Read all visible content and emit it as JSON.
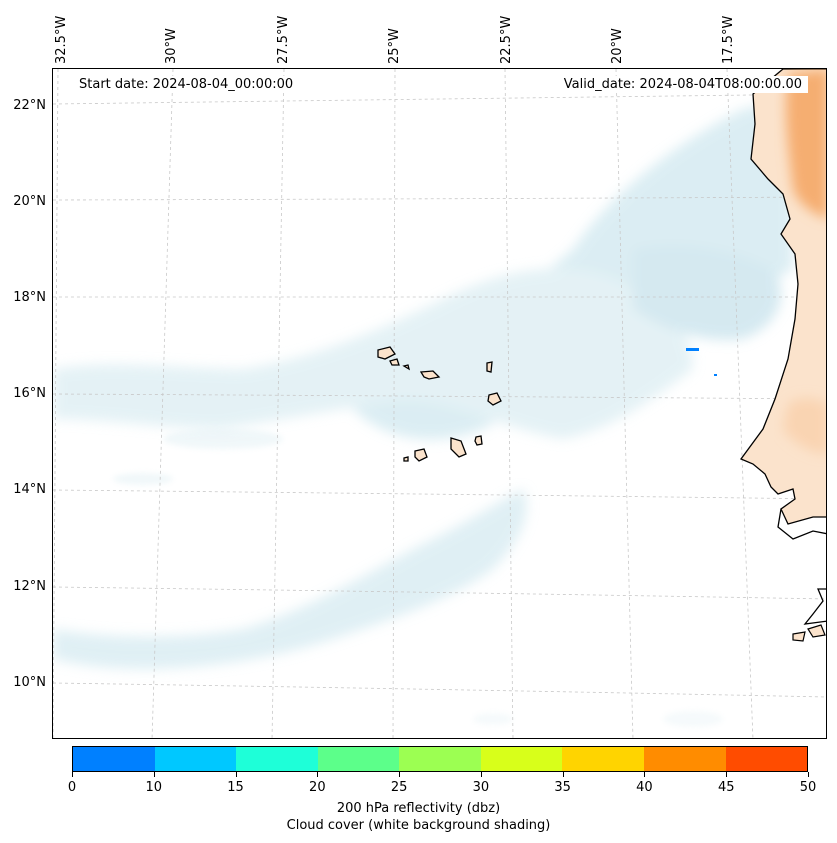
{
  "map": {
    "start_date": "Start date: 2024-08-04_00:00:00",
    "valid_date": "Valid_date: 2024-08-04T08:00:00.00",
    "lon_labels": [
      "32.5°W",
      "30°W",
      "27.5°W",
      "25°W",
      "22.5°W",
      "20°W",
      "17.5°W"
    ],
    "lat_labels": [
      "22°N",
      "20°N",
      "18°N",
      "16°N",
      "14°N",
      "12°N",
      "10°N"
    ],
    "land_fill": "#fbe3cc",
    "coast_color": "#000000",
    "cloud_color": "#add8e6",
    "reflectivity_color": "#f4a460"
  },
  "colorbar": {
    "colors": [
      "#0080ff",
      "#00c8ff",
      "#1effd8",
      "#5cff8a",
      "#9cff52",
      "#d8ff1a",
      "#ffd400",
      "#ff8c00",
      "#ff4c00"
    ],
    "ticks": [
      "0",
      "10",
      "15",
      "20",
      "25",
      "30",
      "35",
      "40",
      "45",
      "50"
    ],
    "label": "200 hPa reflectivity (dbz)",
    "sublabel": "Cloud cover (white background shading)"
  }
}
